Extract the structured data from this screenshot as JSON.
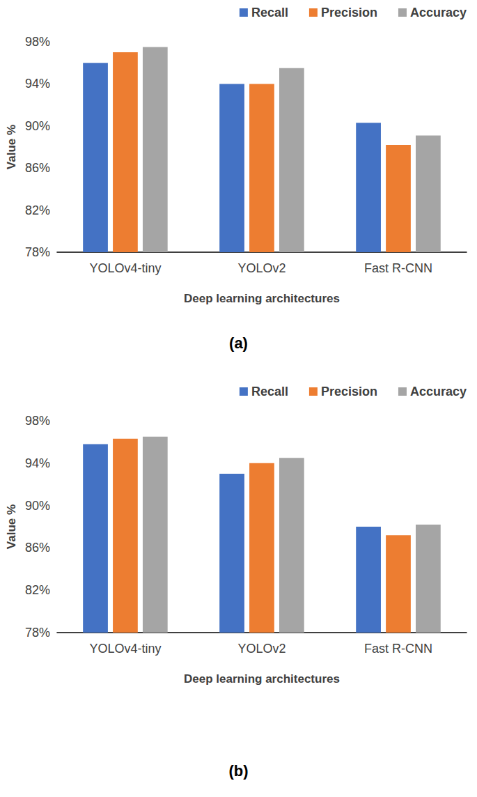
{
  "chart_data": [
    {
      "type": "bar",
      "title": "(a)",
      "x_label": "Deep learning architectures",
      "y_label": "Value %",
      "categories": [
        "YOLOv4-tiny",
        "YOLOv2",
        "Fast R-CNN"
      ],
      "series": [
        {
          "name": "Recall",
          "color": "#4472c4",
          "values": [
            96,
            94,
            90.3
          ]
        },
        {
          "name": "Precision",
          "color": "#ed7d31",
          "values": [
            97,
            94,
            88.2
          ]
        },
        {
          "name": "Accuracy",
          "color": "#a5a5a5",
          "values": [
            97.5,
            95.5,
            89.1
          ]
        }
      ],
      "ylim": [
        78,
        98
      ],
      "yticks": [
        {
          "value": 78,
          "label": "78%"
        },
        {
          "value": 82,
          "label": "82%"
        },
        {
          "value": 86,
          "label": "86%"
        },
        {
          "value": 90,
          "label": "90%"
        },
        {
          "value": 94,
          "label": "94%"
        },
        {
          "value": 98,
          "label": "98%"
        }
      ],
      "grid": false,
      "legend": "top"
    },
    {
      "type": "bar",
      "title": "(b)",
      "x_label": "Deep learning architectures",
      "y_label": "Value %",
      "categories": [
        "YOLOv4-tiny",
        "YOLOv2",
        "Fast R-CNN"
      ],
      "series": [
        {
          "name": "Recall",
          "color": "#4472c4",
          "values": [
            95.8,
            93,
            88
          ]
        },
        {
          "name": "Precision",
          "color": "#ed7d31",
          "values": [
            96.3,
            94,
            87.2
          ]
        },
        {
          "name": "Accuracy",
          "color": "#a5a5a5",
          "values": [
            96.5,
            94.5,
            88.2
          ]
        }
      ],
      "ylim": [
        78,
        98
      ],
      "yticks": [
        {
          "value": 78,
          "label": "78%"
        },
        {
          "value": 82,
          "label": "82%"
        },
        {
          "value": 86,
          "label": "86%"
        },
        {
          "value": 90,
          "label": "90%"
        },
        {
          "value": 94,
          "label": "94%"
        },
        {
          "value": 98,
          "label": "98%"
        }
      ],
      "grid": false,
      "legend": "top"
    }
  ]
}
